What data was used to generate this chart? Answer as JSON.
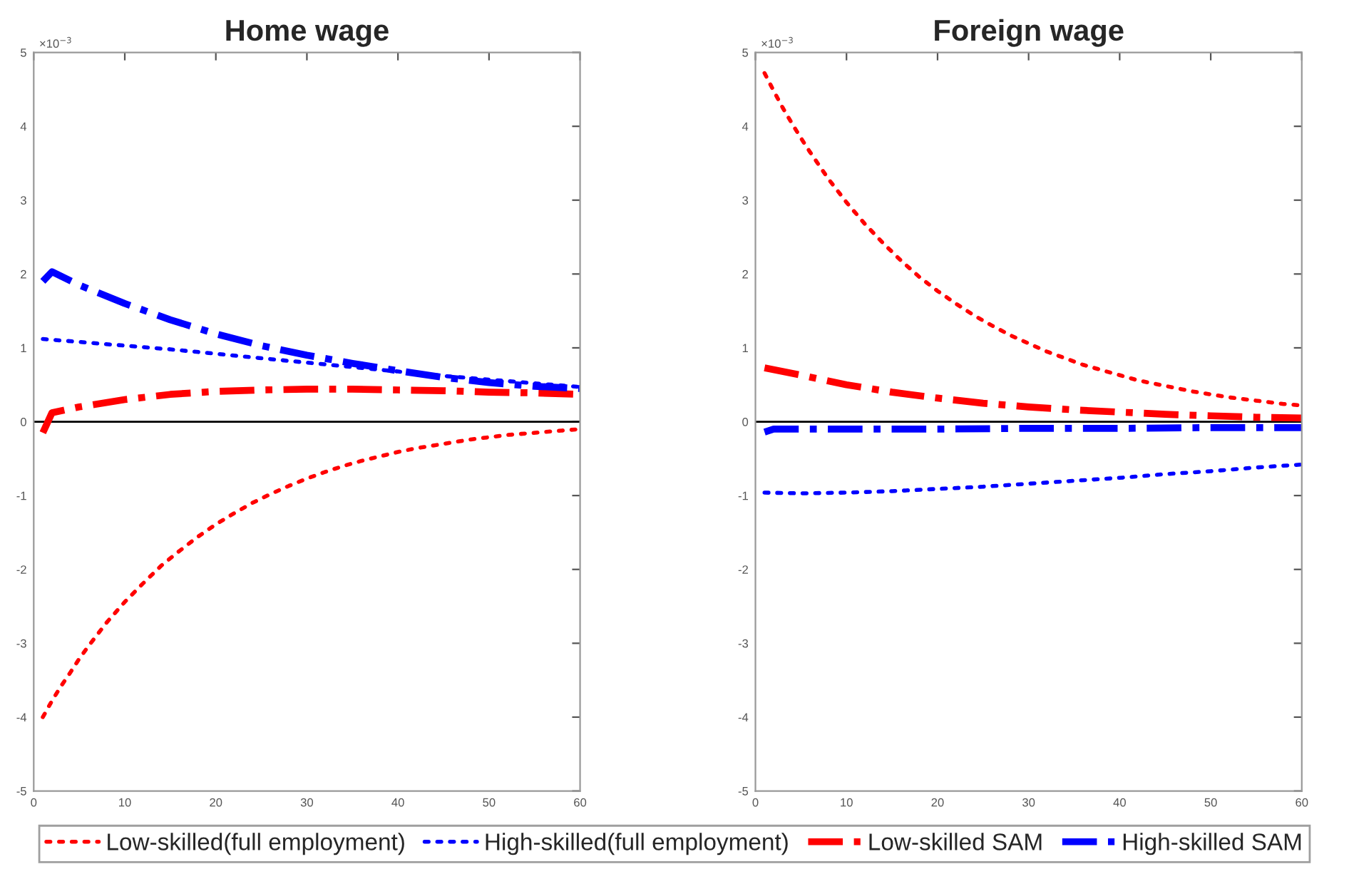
{
  "chart_data": [
    {
      "type": "line",
      "title": "Home wage",
      "annotations": [
        "×10$^{−3}$"
      ],
      "xlim": [
        0,
        60
      ],
      "xticks": [
        0,
        10,
        20,
        30,
        40,
        50,
        60
      ],
      "ylim": [
        -5,
        5
      ],
      "yticks": [
        -5,
        -4,
        -3,
        -2,
        -1,
        0,
        1,
        2,
        3,
        4,
        5
      ],
      "grid": false,
      "legend": "bottom",
      "ref_lines": [
        {
          "axis": "y",
          "value": 0,
          "color": "#000000"
        }
      ],
      "series": [
        {
          "name": "Low-skilled(full employment)",
          "color": "#ff0000",
          "line_style": "dotted",
          "x": [
            1,
            2,
            3,
            4,
            5,
            6,
            7,
            8,
            9,
            10,
            12,
            14,
            16,
            18,
            20,
            22,
            24,
            26,
            28,
            30,
            32,
            34,
            36,
            38,
            40,
            42,
            44,
            46,
            48,
            50,
            52,
            54,
            56,
            58,
            60
          ],
          "values": [
            -4.0,
            -3.78,
            -3.58,
            -3.4,
            -3.21,
            -3.04,
            -2.88,
            -2.72,
            -2.58,
            -2.44,
            -2.19,
            -1.95,
            -1.75,
            -1.56,
            -1.39,
            -1.24,
            -1.1,
            -0.98,
            -0.87,
            -0.77,
            -0.68,
            -0.6,
            -0.53,
            -0.47,
            -0.41,
            -0.36,
            -0.32,
            -0.28,
            -0.24,
            -0.21,
            -0.18,
            -0.16,
            -0.14,
            -0.12,
            -0.1
          ]
        },
        {
          "name": "High-skilled(full employment)",
          "color": "#0000ff",
          "line_style": "dotted",
          "x": [
            1,
            5,
            10,
            15,
            20,
            25,
            30,
            35,
            40,
            45,
            50,
            55,
            60
          ],
          "values": [
            1.12,
            1.08,
            1.03,
            0.98,
            0.92,
            0.86,
            0.8,
            0.74,
            0.68,
            0.62,
            0.57,
            0.52,
            0.47
          ]
        },
        {
          "name": "Low-skilled SAM",
          "color": "#ff0000",
          "line_style": "dashed",
          "x": [
            1,
            2,
            5,
            10,
            15,
            20,
            25,
            30,
            35,
            40,
            45,
            50,
            55,
            60
          ],
          "values": [
            -0.15,
            0.12,
            0.2,
            0.3,
            0.37,
            0.41,
            0.43,
            0.44,
            0.44,
            0.43,
            0.42,
            0.4,
            0.39,
            0.37
          ]
        },
        {
          "name": "High-skilled SAM",
          "color": "#0000ff",
          "line_style": "dashed",
          "x": [
            1,
            2,
            5,
            10,
            15,
            20,
            25,
            30,
            35,
            40,
            45,
            50,
            55,
            60
          ],
          "values": [
            1.9,
            2.03,
            1.85,
            1.6,
            1.38,
            1.19,
            1.03,
            0.9,
            0.79,
            0.69,
            0.6,
            0.53,
            0.48,
            0.45
          ]
        }
      ]
    },
    {
      "type": "line",
      "title": "Foreign wage",
      "annotations": [
        "×10$^{−3}$"
      ],
      "xlim": [
        0,
        60
      ],
      "xticks": [
        0,
        10,
        20,
        30,
        40,
        50,
        60
      ],
      "ylim": [
        -5,
        5
      ],
      "yticks": [
        -5,
        -4,
        -3,
        -2,
        -1,
        0,
        1,
        2,
        3,
        4,
        5
      ],
      "grid": false,
      "ref_lines": [
        {
          "axis": "y",
          "value": 0,
          "color": "#000000"
        }
      ],
      "series": [
        {
          "color": "#ff0000",
          "line_style": "dotted",
          "x": [
            1,
            2,
            3,
            4,
            5,
            6,
            7,
            8,
            9,
            10,
            12,
            14,
            16,
            18,
            20,
            22,
            24,
            26,
            28,
            30,
            32,
            34,
            36,
            38,
            40,
            42,
            44,
            46,
            48,
            50,
            52,
            54,
            56,
            58,
            60
          ],
          "values": [
            4.72,
            4.48,
            4.25,
            4.04,
            3.84,
            3.65,
            3.47,
            3.29,
            3.13,
            2.97,
            2.68,
            2.42,
            2.18,
            1.96,
            1.77,
            1.6,
            1.44,
            1.3,
            1.17,
            1.06,
            0.95,
            0.86,
            0.77,
            0.7,
            0.63,
            0.56,
            0.51,
            0.46,
            0.41,
            0.37,
            0.33,
            0.3,
            0.27,
            0.24,
            0.22
          ]
        },
        {
          "color": "#0000ff",
          "line_style": "dotted",
          "x": [
            1,
            5,
            10,
            15,
            20,
            25,
            30,
            35,
            40,
            45,
            50,
            55,
            60
          ],
          "values": [
            -0.96,
            -0.97,
            -0.96,
            -0.94,
            -0.91,
            -0.88,
            -0.84,
            -0.8,
            -0.76,
            -0.71,
            -0.67,
            -0.62,
            -0.58
          ]
        },
        {
          "color": "#ff0000",
          "line_style": "dashed",
          "x": [
            1,
            5,
            10,
            15,
            20,
            25,
            30,
            35,
            40,
            45,
            50,
            55,
            60
          ],
          "values": [
            0.73,
            0.63,
            0.5,
            0.4,
            0.32,
            0.25,
            0.2,
            0.16,
            0.13,
            0.1,
            0.08,
            0.06,
            0.05
          ]
        },
        {
          "color": "#0000ff",
          "line_style": "dashed",
          "x": [
            1,
            2,
            5,
            10,
            20,
            30,
            40,
            50,
            60
          ],
          "values": [
            -0.14,
            -0.1,
            -0.1,
            -0.1,
            -0.1,
            -0.09,
            -0.09,
            -0.08,
            -0.08
          ]
        }
      ]
    }
  ]
}
